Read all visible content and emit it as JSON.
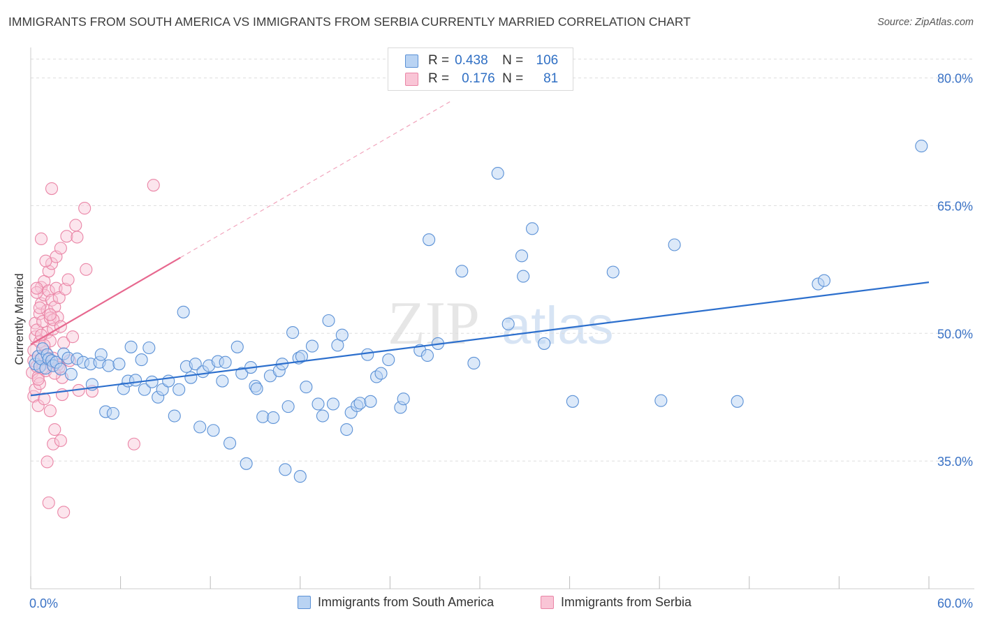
{
  "title": "IMMIGRANTS FROM SOUTH AMERICA VS IMMIGRANTS FROM SERBIA CURRENTLY MARRIED CORRELATION CHART",
  "source": "Source: ZipAtlas.com",
  "watermark": {
    "zip": "ZIP",
    "atlas": "atlas"
  },
  "legend": {
    "rows": [
      {
        "r_label": "R =",
        "r_value": "0.438",
        "n_label": "N =",
        "n_value": "106"
      },
      {
        "r_label": "R =",
        "r_value": "0.176",
        "n_label": "N =",
        "n_value": "81"
      }
    ]
  },
  "colors": {
    "south_america_fill": "#b9d3f3",
    "south_america_stroke": "#5b91d6",
    "south_america_line": "#2c6fcd",
    "serbia_fill": "#f9c5d6",
    "serbia_stroke": "#ea85a6",
    "serbia_line": "#e7688f",
    "axis_label": "#3a72c5",
    "grid": "#dddddd"
  },
  "chart_data": {
    "type": "scatter",
    "title": "IMMIGRANTS FROM SOUTH AMERICA VS IMMIGRANTS FROM SERBIA CURRENTLY MARRIED CORRELATION CHART",
    "xlabel": "",
    "ylabel": "Currently Married",
    "xlim": [
      0,
      60
    ],
    "ylim": [
      20,
      83
    ],
    "x_tick_labels": [
      "0.0%",
      "60.0%"
    ],
    "y_ticks": [
      35,
      50,
      65,
      80
    ],
    "y_tick_labels": [
      "35.0%",
      "50.0%",
      "65.0%",
      "80.0%"
    ],
    "grid": true,
    "series": [
      {
        "name": "Immigrants from South America",
        "r": 0.438,
        "n": 106,
        "trend": {
          "x": [
            0,
            60
          ],
          "y": [
            42.7,
            56.0
          ]
        },
        "points": [
          [
            0.3,
            46.4
          ],
          [
            0.5,
            47.3
          ],
          [
            0.6,
            46.1
          ],
          [
            0.7,
            47.0
          ],
          [
            0.8,
            48.2
          ],
          [
            1.0,
            45.9
          ],
          [
            1.1,
            47.5
          ],
          [
            1.2,
            47.0
          ],
          [
            1.4,
            46.8
          ],
          [
            1.5,
            46.2
          ],
          [
            1.7,
            46.6
          ],
          [
            2.0,
            45.8
          ],
          [
            2.2,
            47.6
          ],
          [
            2.5,
            47.1
          ],
          [
            2.7,
            45.2
          ],
          [
            3.1,
            47.0
          ],
          [
            3.5,
            46.6
          ],
          [
            4.0,
            46.4
          ],
          [
            4.1,
            44.0
          ],
          [
            4.6,
            46.6
          ],
          [
            4.7,
            47.5
          ],
          [
            5.0,
            40.8
          ],
          [
            5.2,
            46.2
          ],
          [
            5.5,
            40.6
          ],
          [
            5.9,
            46.4
          ],
          [
            6.2,
            43.5
          ],
          [
            6.5,
            44.4
          ],
          [
            6.7,
            48.4
          ],
          [
            7.0,
            44.5
          ],
          [
            7.4,
            46.9
          ],
          [
            7.6,
            43.4
          ],
          [
            7.9,
            48.3
          ],
          [
            8.1,
            44.3
          ],
          [
            8.5,
            42.5
          ],
          [
            8.8,
            43.4
          ],
          [
            9.2,
            44.4
          ],
          [
            9.6,
            40.3
          ],
          [
            9.9,
            43.4
          ],
          [
            10.2,
            52.5
          ],
          [
            10.4,
            46.1
          ],
          [
            10.7,
            44.8
          ],
          [
            11.0,
            46.4
          ],
          [
            11.3,
            39.0
          ],
          [
            11.5,
            45.5
          ],
          [
            11.9,
            46.2
          ],
          [
            12.2,
            38.6
          ],
          [
            12.5,
            46.7
          ],
          [
            12.8,
            44.4
          ],
          [
            13.0,
            46.6
          ],
          [
            13.3,
            37.1
          ],
          [
            13.8,
            48.4
          ],
          [
            14.1,
            45.3
          ],
          [
            14.4,
            34.7
          ],
          [
            14.7,
            46.0
          ],
          [
            15.0,
            43.8
          ],
          [
            15.1,
            43.5
          ],
          [
            15.5,
            40.2
          ],
          [
            16.0,
            45.0
          ],
          [
            16.2,
            40.1
          ],
          [
            16.6,
            45.6
          ],
          [
            16.8,
            46.4
          ],
          [
            17.2,
            41.4
          ],
          [
            17.5,
            50.1
          ],
          [
            17.9,
            47.1
          ],
          [
            18.1,
            47.3
          ],
          [
            18.4,
            43.7
          ],
          [
            18.8,
            48.5
          ],
          [
            19.2,
            41.7
          ],
          [
            19.5,
            40.3
          ],
          [
            19.9,
            51.5
          ],
          [
            20.2,
            41.7
          ],
          [
            20.5,
            48.6
          ],
          [
            20.8,
            49.8
          ],
          [
            21.1,
            38.7
          ],
          [
            21.4,
            40.7
          ],
          [
            21.8,
            41.5
          ],
          [
            22.0,
            41.8
          ],
          [
            22.5,
            47.5
          ],
          [
            22.7,
            42.0
          ],
          [
            23.1,
            44.9
          ],
          [
            23.4,
            45.3
          ],
          [
            23.9,
            46.9
          ],
          [
            24.7,
            41.3
          ],
          [
            24.9,
            42.3
          ],
          [
            26.0,
            48.0
          ],
          [
            26.5,
            47.4
          ],
          [
            26.6,
            61.0
          ],
          [
            27.2,
            48.8
          ],
          [
            28.8,
            57.3
          ],
          [
            29.6,
            46.5
          ],
          [
            31.2,
            68.8
          ],
          [
            31.9,
            51.1
          ],
          [
            32.8,
            59.1
          ],
          [
            32.9,
            56.7
          ],
          [
            33.5,
            62.3
          ],
          [
            34.3,
            48.8
          ],
          [
            36.2,
            42.0
          ],
          [
            38.9,
            57.2
          ],
          [
            42.1,
            42.1
          ],
          [
            43.0,
            60.4
          ],
          [
            47.2,
            42.0
          ],
          [
            52.6,
            55.8
          ],
          [
            53.0,
            56.2
          ],
          [
            59.5,
            72.0
          ],
          [
            17.0,
            34.0
          ],
          [
            18.0,
            33.2
          ]
        ]
      },
      {
        "name": "Immigrants from Serbia",
        "r": 0.176,
        "n": 81,
        "trend": {
          "x": [
            0,
            10
          ],
          "y": [
            48.7,
            58.9
          ]
        },
        "trend_extension": {
          "x": [
            10,
            28
          ],
          "y": [
            58.9,
            77.2
          ]
        },
        "points": [
          [
            0.1,
            45.4
          ],
          [
            0.2,
            46.8
          ],
          [
            0.2,
            48.0
          ],
          [
            0.3,
            49.6
          ],
          [
            0.3,
            51.2
          ],
          [
            0.4,
            46.1
          ],
          [
            0.4,
            50.4
          ],
          [
            0.5,
            44.9
          ],
          [
            0.5,
            47.3
          ],
          [
            0.6,
            49.0
          ],
          [
            0.6,
            52.3
          ],
          [
            0.7,
            53.5
          ],
          [
            0.7,
            55.4
          ],
          [
            0.8,
            46.4
          ],
          [
            0.8,
            51.4
          ],
          [
            0.9,
            54.5
          ],
          [
            0.9,
            56.1
          ],
          [
            1.0,
            45.6
          ],
          [
            1.0,
            47.8
          ],
          [
            1.1,
            50.1
          ],
          [
            1.1,
            52.7
          ],
          [
            1.2,
            55.0
          ],
          [
            1.2,
            57.3
          ],
          [
            1.3,
            49.1
          ],
          [
            1.3,
            51.8
          ],
          [
            1.4,
            53.9
          ],
          [
            1.4,
            58.2
          ],
          [
            1.5,
            47.1
          ],
          [
            1.5,
            50.5
          ],
          [
            1.6,
            53.1
          ],
          [
            1.7,
            55.3
          ],
          [
            1.7,
            59.0
          ],
          [
            1.8,
            46.3
          ],
          [
            1.8,
            51.9
          ],
          [
            1.9,
            54.2
          ],
          [
            2.0,
            60.0
          ],
          [
            2.1,
            44.8
          ],
          [
            2.2,
            48.9
          ],
          [
            2.3,
            55.2
          ],
          [
            2.4,
            61.4
          ],
          [
            2.5,
            56.3
          ],
          [
            2.6,
            46.8
          ],
          [
            2.8,
            49.6
          ],
          [
            3.0,
            62.7
          ],
          [
            3.1,
            61.3
          ],
          [
            3.2,
            43.3
          ],
          [
            3.6,
            64.7
          ],
          [
            3.7,
            57.5
          ],
          [
            0.2,
            42.6
          ],
          [
            0.3,
            43.4
          ],
          [
            0.5,
            41.5
          ],
          [
            0.6,
            44.1
          ],
          [
            0.7,
            61.1
          ],
          [
            0.9,
            42.3
          ],
          [
            1.0,
            58.5
          ],
          [
            1.1,
            34.9
          ],
          [
            1.2,
            30.1
          ],
          [
            1.3,
            40.9
          ],
          [
            1.4,
            67.0
          ],
          [
            1.5,
            37.0
          ],
          [
            1.6,
            38.7
          ],
          [
            2.0,
            37.4
          ],
          [
            2.1,
            42.8
          ],
          [
            2.2,
            29.0
          ],
          [
            4.1,
            43.2
          ],
          [
            8.2,
            67.4
          ],
          [
            6.9,
            37.0
          ],
          [
            0.4,
            54.8
          ],
          [
            0.5,
            44.6
          ],
          [
            0.8,
            45.9
          ],
          [
            0.9,
            48.6
          ],
          [
            1.2,
            46.9
          ],
          [
            1.5,
            51.6
          ],
          [
            2.0,
            50.8
          ],
          [
            0.4,
            55.3
          ],
          [
            0.6,
            53.0
          ],
          [
            0.7,
            49.8
          ],
          [
            0.9,
            47.4
          ],
          [
            1.3,
            52.2
          ],
          [
            1.6,
            45.3
          ],
          [
            1.9,
            46.0
          ]
        ]
      }
    ]
  },
  "bottom_legend": [
    {
      "label": "Immigrants from South America"
    },
    {
      "label": "Immigrants from Serbia"
    }
  ]
}
